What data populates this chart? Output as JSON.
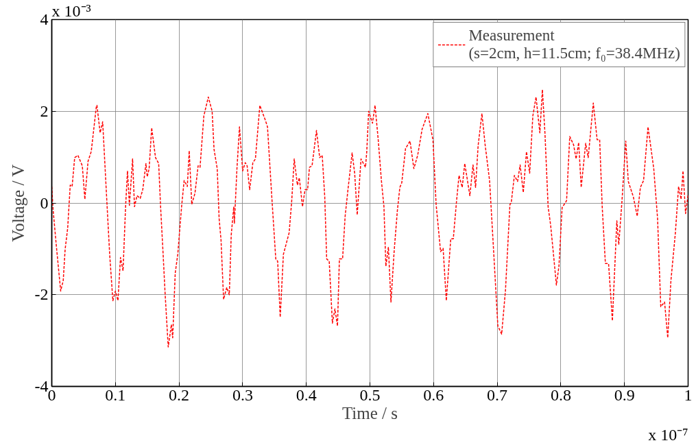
{
  "chart_data": {
    "type": "line",
    "xlabel": "Time / s",
    "ylabel": "Voltage / V",
    "annotations": [
      "x 10⁻³",
      "x 10⁻⁷"
    ],
    "xlim": [
      0,
      1
    ],
    "xticks": [
      0,
      0.1,
      0.2,
      0.3,
      0.4,
      0.5,
      0.6,
      0.7,
      0.8,
      0.9,
      1
    ],
    "ylim": [
      -4,
      4
    ],
    "yticks": [
      -4,
      -2,
      0,
      2,
      4
    ],
    "grid": true,
    "legend": "top right",
    "line_style": "dashed",
    "marker": "none",
    "series": [
      {
        "name": "Measurement\n(s=2cm, h=11.5cm; f₀=38.4MHz)",
        "color": "#ff0000",
        "x": [
          0,
          0.002,
          0.007,
          0.014,
          0.018,
          0.021,
          0.025,
          0.029,
          0.032,
          0.036,
          0.041,
          0.048,
          0.052,
          0.057,
          0.062,
          0.07,
          0.071,
          0.076,
          0.08,
          0.086,
          0.091,
          0.096,
          0.1,
          0.104,
          0.108,
          0.112,
          0.116,
          0.119,
          0.122,
          0.127,
          0.13,
          0.134,
          0.139,
          0.143,
          0.148,
          0.15,
          0.153,
          0.157,
          0.163,
          0.168,
          0.171,
          0.175,
          0.178,
          0.183,
          0.188,
          0.19,
          0.194,
          0.198,
          0.204,
          0.208,
          0.213,
          0.216,
          0.22,
          0.225,
          0.23,
          0.233,
          0.239,
          0.246,
          0.252,
          0.255,
          0.26,
          0.263,
          0.266,
          0.27,
          0.275,
          0.279,
          0.282,
          0.286,
          0.287,
          0.291,
          0.295,
          0.3,
          0.304,
          0.307,
          0.311,
          0.316,
          0.32,
          0.327,
          0.336,
          0.339,
          0.346,
          0.352,
          0.355,
          0.359,
          0.364,
          0.373,
          0.377,
          0.381,
          0.386,
          0.389,
          0.394,
          0.398,
          0.402,
          0.405,
          0.409,
          0.416,
          0.421,
          0.425,
          0.429,
          0.432,
          0.436,
          0.441,
          0.445,
          0.449,
          0.452,
          0.457,
          0.461,
          0.466,
          0.472,
          0.476,
          0.48,
          0.486,
          0.493,
          0.495,
          0.498,
          0.504,
          0.508,
          0.513,
          0.518,
          0.522,
          0.525,
          0.529,
          0.533,
          0.538,
          0.543,
          0.547,
          0.55,
          0.556,
          0.563,
          0.569,
          0.575,
          0.582,
          0.591,
          0.599,
          0.604,
          0.611,
          0.615,
          0.62,
          0.627,
          0.631,
          0.636,
          0.64,
          0.645,
          0.649,
          0.657,
          0.662,
          0.666,
          0.67,
          0.676,
          0.681,
          0.688,
          0.694,
          0.701,
          0.707,
          0.713,
          0.72,
          0.722,
          0.727,
          0.732,
          0.736,
          0.741,
          0.746,
          0.751,
          0.756,
          0.761,
          0.767,
          0.771,
          0.775,
          0.78,
          0.784,
          0.788,
          0.793,
          0.797,
          0.802,
          0.809,
          0.814,
          0.82,
          0.824,
          0.828,
          0.832,
          0.839,
          0.843,
          0.851,
          0.857,
          0.861,
          0.865,
          0.87,
          0.875,
          0.881,
          0.888,
          0.891,
          0.896,
          0.902,
          0.906,
          0.914,
          0.92,
          0.925,
          0.93,
          0.937,
          0.946,
          0.952,
          0.957,
          0.963,
          0.968,
          0.973,
          0.98,
          0.985,
          0.989,
          0.992,
          0.996,
          1.0
        ],
        "values": [
          0.36,
          -0.13,
          -0.91,
          -1.92,
          -1.69,
          -1.01,
          -0.55,
          0.39,
          0.36,
          0.99,
          1.04,
          0.81,
          0.08,
          0.91,
          1.12,
          2.1,
          2.13,
          1.53,
          1.77,
          0.18,
          -1.12,
          -2.13,
          -1.92,
          -2.13,
          -1.19,
          -1.48,
          -0.08,
          0.7,
          -0.05,
          0.96,
          -0.08,
          0.16,
          0.1,
          0.29,
          0.86,
          0.57,
          0.75,
          1.64,
          0.99,
          0.86,
          -0.08,
          -1.12,
          -1.95,
          -3.14,
          -2.65,
          -2.94,
          -1.53,
          -1.12,
          -0.08,
          0.49,
          0.36,
          1.14,
          -0.03,
          0.21,
          0.81,
          0.78,
          1.9,
          2.31,
          2.0,
          1.17,
          0.75,
          -0.34,
          -0.81,
          -2.1,
          -1.84,
          -2.0,
          -0.7,
          -0.08,
          -0.44,
          0.75,
          1.66,
          0.7,
          0.88,
          0.81,
          0.29,
          0.88,
          0.96,
          2.13,
          1.79,
          1.66,
          0.08,
          -1.22,
          -1.27,
          -2.49,
          -1.12,
          -0.65,
          0.03,
          0.96,
          0.39,
          0.55,
          -0.08,
          0.29,
          0.29,
          0.78,
          0.81,
          1.58,
          0.99,
          1.04,
          0.13,
          -1.22,
          -1.27,
          -2.62,
          -2.31,
          -2.68,
          -1.22,
          -1.22,
          -0.29,
          0.36,
          1.09,
          0.65,
          -0.26,
          0.96,
          0.78,
          1.12,
          2.0,
          1.74,
          2.13,
          1.38,
          0.49,
          -0.08,
          -1.38,
          -0.96,
          -2.16,
          -1.06,
          -0.18,
          0.34,
          0.44,
          1.19,
          1.35,
          0.75,
          1.04,
          1.61,
          1.95,
          1.38,
          -0.03,
          -1.06,
          -0.99,
          -2.13,
          -0.78,
          -0.78,
          0.03,
          0.6,
          0.34,
          0.86,
          0.16,
          0.83,
          0.34,
          1.25,
          1.95,
          1.27,
          0.49,
          -0.96,
          -2.68,
          -2.86,
          -1.9,
          -0.03,
          0,
          0.6,
          0.47,
          0.83,
          0.23,
          1.12,
          0.65,
          1.9,
          2.31,
          1.53,
          2.47,
          1.53,
          -0.08,
          -0.49,
          -1.06,
          -1.79,
          -1.38,
          -0.1,
          0.05,
          1.45,
          1.27,
          0.96,
          1.32,
          0.34,
          1.3,
          0.99,
          2.18,
          1.38,
          1.38,
          -0.08,
          -1.32,
          -1.32,
          -2.57,
          -0.39,
          -0.91,
          0.03,
          1.35,
          0.47,
          0.13,
          -0.29,
          0.34,
          0.49,
          1.66,
          0.75,
          -0.34,
          -2.26,
          -2.16,
          -2.94,
          -1.69,
          -0.65,
          0.36,
          0.08,
          0.7,
          -0.23,
          0.18
        ]
      }
    ]
  }
}
